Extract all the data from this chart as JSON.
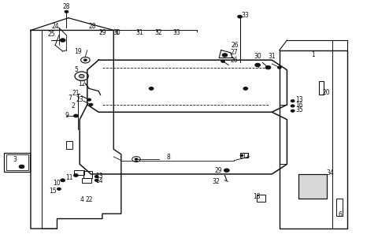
{
  "bg_color": "#ffffff",
  "fig_width": 4.8,
  "fig_height": 3.16,
  "dpi": 100,
  "font_size": 5.5,
  "line_color": "#111111"
}
